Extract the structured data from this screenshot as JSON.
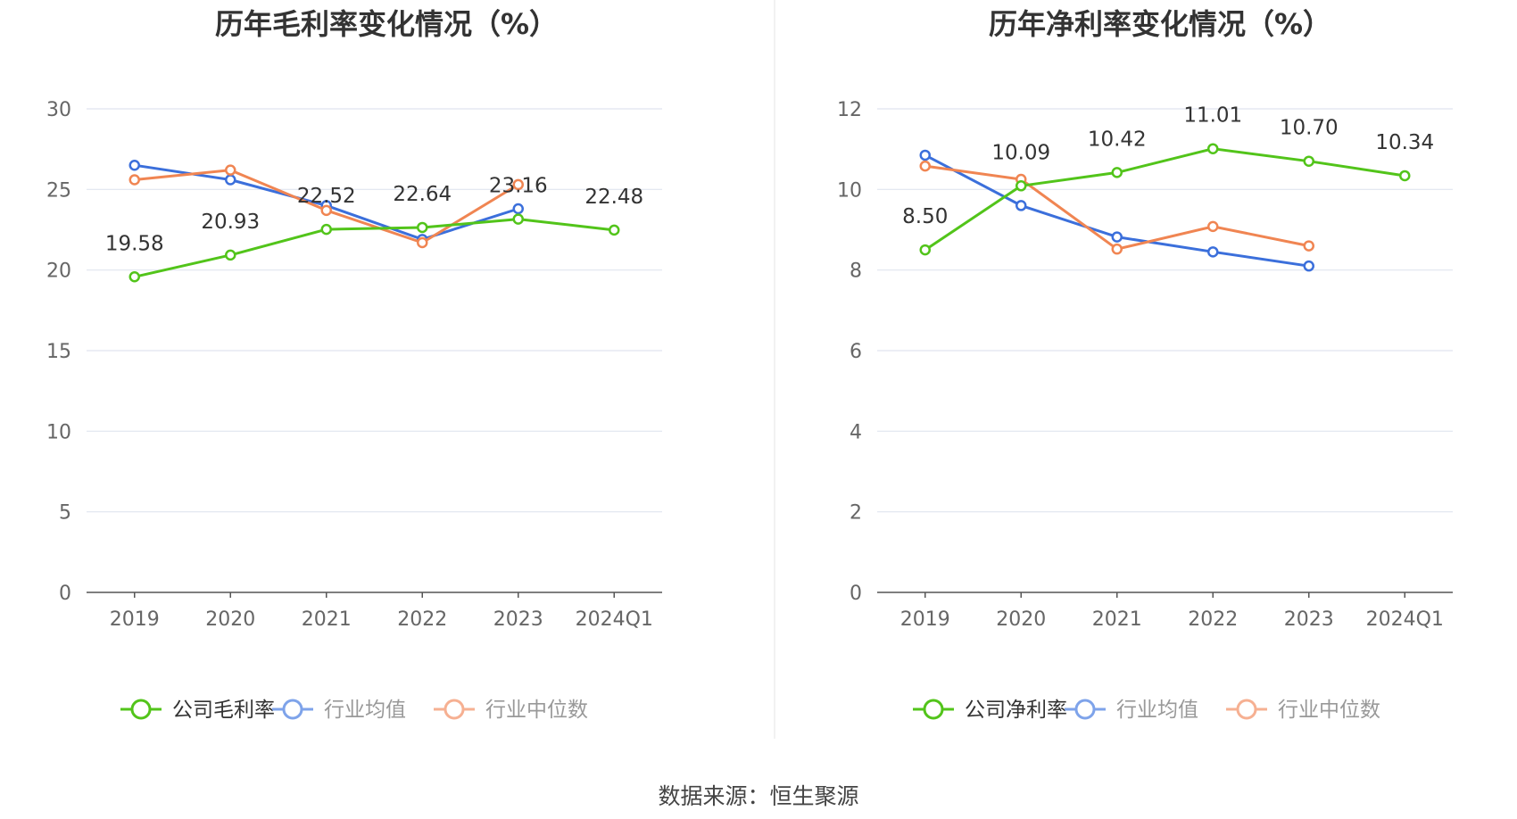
{
  "chart_data": [
    {
      "type": "line",
      "title": "历年毛利率变化情况（%）",
      "categories": [
        "2019",
        "2020",
        "2021",
        "2022",
        "2023",
        "2024Q1"
      ],
      "ylim": [
        0,
        30
      ],
      "yticks": [
        0,
        5,
        10,
        15,
        20,
        25,
        30
      ],
      "grid": true,
      "legend_position": "bottom-center",
      "series": [
        {
          "name": "公司毛利率",
          "color": "#52c41a",
          "values": [
            19.58,
            20.93,
            22.52,
            22.64,
            23.16,
            22.48
          ],
          "labels": [
            "19.58",
            "20.93",
            "22.52",
            "22.64",
            "23.16",
            "22.48"
          ]
        },
        {
          "name": "行业均值",
          "color": "#3b6fdb",
          "values": [
            26.5,
            25.6,
            24.0,
            21.9,
            23.8,
            null
          ]
        },
        {
          "name": "行业中位数",
          "color": "#f08552",
          "values": [
            25.6,
            26.2,
            23.7,
            21.7,
            25.3,
            null
          ]
        }
      ]
    },
    {
      "type": "line",
      "title": "历年净利率变化情况（%）",
      "categories": [
        "2019",
        "2020",
        "2021",
        "2022",
        "2023",
        "2024Q1"
      ],
      "ylim": [
        0,
        12
      ],
      "yticks": [
        0,
        2,
        4,
        6,
        8,
        10,
        12
      ],
      "grid": true,
      "legend_position": "bottom-center",
      "series": [
        {
          "name": "公司净利率",
          "color": "#52c41a",
          "values": [
            8.5,
            10.09,
            10.42,
            11.01,
            10.7,
            10.34
          ],
          "labels": [
            "8.50",
            "10.09",
            "10.42",
            "11.01",
            "10.70",
            "10.34"
          ]
        },
        {
          "name": "行业均值",
          "color": "#3b6fdb",
          "values": [
            10.85,
            9.6,
            8.82,
            8.45,
            8.1,
            null
          ]
        },
        {
          "name": "行业中位数",
          "color": "#f08552",
          "values": [
            10.58,
            10.25,
            8.52,
            9.08,
            8.6,
            null
          ]
        }
      ]
    }
  ],
  "footer": {
    "source": "数据来源：恒生聚源"
  }
}
